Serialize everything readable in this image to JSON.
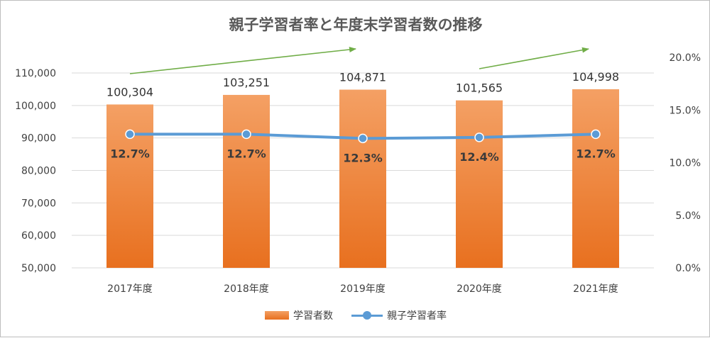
{
  "chart_data": {
    "type": "bar",
    "title": "親子学習者率と年度末学習者数の推移",
    "categories": [
      "2017年度",
      "2018年度",
      "2019年度",
      "2020年度",
      "2021年度"
    ],
    "series": [
      {
        "name": "学習者数",
        "type": "bar",
        "axis": "left",
        "color": "#ed7d31",
        "values": [
          100304,
          103251,
          104871,
          101565,
          104998
        ],
        "labels": [
          "100,304",
          "103,251",
          "104,871",
          "101,565",
          "104,998"
        ]
      },
      {
        "name": "親子学習者率",
        "type": "line",
        "axis": "right",
        "color": "#5b9bd5",
        "values": [
          12.7,
          12.7,
          12.3,
          12.4,
          12.7
        ],
        "labels": [
          "12.7%",
          "12.7%",
          "12.3%",
          "12.4%",
          "12.7%"
        ]
      }
    ],
    "y_left": {
      "ylim": [
        50000,
        110000
      ],
      "ticks": [
        50000,
        60000,
        70000,
        80000,
        90000,
        100000,
        110000
      ],
      "tick_labels": [
        "50,000",
        "60,000",
        "70,000",
        "80,000",
        "90,000",
        "100,000",
        "110,000"
      ]
    },
    "y_right": {
      "ylim": [
        0,
        20
      ],
      "ticks": [
        0,
        5,
        10,
        15,
        20
      ],
      "tick_labels": [
        "0.0%",
        "5.0%",
        "10.0%",
        "15.0%",
        "20.0%"
      ]
    },
    "grid": true,
    "legend": "bottom",
    "annotations": [
      {
        "type": "trend-arrow",
        "color": "#70ad47",
        "from": "2017年度",
        "to": "2019年度"
      },
      {
        "type": "trend-arrow",
        "color": "#70ad47",
        "from": "2020年度",
        "to": "2021年度"
      }
    ]
  }
}
